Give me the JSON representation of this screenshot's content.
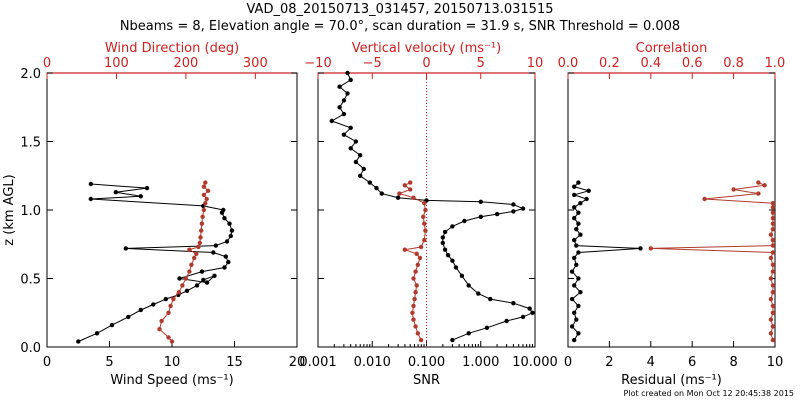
{
  "figure": {
    "title_line1": "VAD_08_20150713_031457, 20150713.031515",
    "title_line2": "Nbeams = 8, Elevation angle = 70.0°, scan duration = 31.9 s, SNR Threshold = 0.008",
    "footer": "Plot created on Mon Oct 12 20:45:38 2015",
    "colors": {
      "black_series": "#000000",
      "red_series": "#b03a2e",
      "red_axis": "#cc2222"
    }
  },
  "chart_data": [
    {
      "type": "line",
      "ylabel": "z (km AGL)",
      "ylim": [
        0,
        2.0
      ],
      "y_ticks": [
        "0.0",
        "0.5",
        "1.0",
        "1.5",
        "2.0"
      ],
      "bottom_axis": {
        "label": "Wind Speed (ms⁻¹)",
        "range": [
          0,
          20
        ],
        "ticks": [
          "0",
          "5",
          "10",
          "15",
          "20"
        ]
      },
      "top_axis": {
        "label": "Wind Direction (deg)",
        "range": [
          0,
          360
        ],
        "ticks": [
          "0",
          "100",
          "200",
          "300"
        ],
        "color": "#cc2222"
      },
      "series": [
        {
          "axis": "bottom",
          "color": "#000000",
          "points": [
            [
              2.5,
              0.04
            ],
            [
              4,
              0.1
            ],
            [
              5.2,
              0.16
            ],
            [
              6.5,
              0.22
            ],
            [
              7.5,
              0.27
            ],
            [
              8.5,
              0.31
            ],
            [
              9.5,
              0.35
            ],
            [
              10.5,
              0.38
            ],
            [
              11.2,
              0.41
            ],
            [
              12,
              0.45
            ],
            [
              12.5,
              0.49
            ],
            [
              13.4,
              0.52
            ],
            [
              12.8,
              0.47
            ],
            [
              10.6,
              0.5
            ],
            [
              12.4,
              0.55
            ],
            [
              14.2,
              0.58
            ],
            [
              14.5,
              0.62
            ],
            [
              14.3,
              0.66
            ],
            [
              13.3,
              0.69
            ],
            [
              6.3,
              0.72
            ],
            [
              13.5,
              0.74
            ],
            [
              14.4,
              0.77
            ],
            [
              14.7,
              0.81
            ],
            [
              14.8,
              0.85
            ],
            [
              14.6,
              0.9
            ],
            [
              14.2,
              0.94
            ],
            [
              14,
              0.98
            ],
            [
              14.1,
              1.0
            ],
            [
              12.5,
              1.03
            ],
            [
              3.5,
              1.08
            ],
            [
              7.5,
              1.1
            ],
            [
              5.5,
              1.13
            ],
            [
              8,
              1.16
            ],
            [
              3.5,
              1.19
            ]
          ]
        },
        {
          "axis": "top",
          "color": "#b03a2e",
          "points": [
            [
              180,
              0.04
            ],
            [
              175,
              0.07
            ],
            [
              162,
              0.13
            ],
            [
              165,
              0.19
            ],
            [
              175,
              0.25
            ],
            [
              178,
              0.3
            ],
            [
              182,
              0.35
            ],
            [
              190,
              0.4
            ],
            [
              195,
              0.45
            ],
            [
              200,
              0.5
            ],
            [
              205,
              0.55
            ],
            [
              208,
              0.6
            ],
            [
              212,
              0.65
            ],
            [
              215,
              0.68
            ],
            [
              205,
              0.71
            ],
            [
              218,
              0.73
            ],
            [
              220,
              0.76
            ],
            [
              221,
              0.8
            ],
            [
              222,
              0.85
            ],
            [
              223,
              0.9
            ],
            [
              224,
              0.95
            ],
            [
              226,
              1.0
            ],
            [
              228,
              1.05
            ],
            [
              230,
              1.08
            ],
            [
              226,
              1.11
            ],
            [
              232,
              1.14
            ],
            [
              226,
              1.17
            ],
            [
              228,
              1.2
            ]
          ]
        }
      ]
    },
    {
      "type": "line",
      "ylim": [
        0,
        2.0
      ],
      "bottom_axis": {
        "label": "SNR",
        "range": [
          0.001,
          10
        ],
        "scale": "log",
        "ticks": [
          "0.001",
          "0.010",
          "0.100",
          "1.000",
          "10.000"
        ]
      },
      "top_axis": {
        "label": "Vertical velocity (ms⁻¹)",
        "range": [
          -10,
          10
        ],
        "ticks": [
          "−10",
          "−5",
          "0",
          "5",
          "10"
        ],
        "color": "#cc2222",
        "zero_line": true
      },
      "series": [
        {
          "axis": "bottom",
          "color": "#000000",
          "points": [
            [
              0.3,
              0.05
            ],
            [
              0.6,
              0.1
            ],
            [
              1.3,
              0.14
            ],
            [
              3,
              0.19
            ],
            [
              6,
              0.22
            ],
            [
              9,
              0.25
            ],
            [
              8,
              0.28
            ],
            [
              4,
              0.32
            ],
            [
              1.5,
              0.35
            ],
            [
              0.9,
              0.39
            ],
            [
              0.6,
              0.45
            ],
            [
              0.45,
              0.52
            ],
            [
              0.35,
              0.58
            ],
            [
              0.3,
              0.63
            ],
            [
              0.25,
              0.67
            ],
            [
              0.22,
              0.71
            ],
            [
              0.2,
              0.76
            ],
            [
              0.2,
              0.8
            ],
            [
              0.22,
              0.84
            ],
            [
              0.3,
              0.88
            ],
            [
              0.5,
              0.92
            ],
            [
              1,
              0.95
            ],
            [
              2,
              0.97
            ],
            [
              4,
              0.99
            ],
            [
              6,
              1.01
            ],
            [
              4,
              1.04
            ],
            [
              1,
              1.06
            ],
            [
              0.1,
              1.07
            ],
            [
              0.03,
              1.09
            ],
            [
              0.015,
              1.12
            ],
            [
              0.012,
              1.16
            ],
            [
              0.009,
              1.2
            ],
            [
              0.006,
              1.25
            ],
            [
              0.007,
              1.3
            ],
            [
              0.005,
              1.35
            ],
            [
              0.006,
              1.4
            ],
            [
              0.004,
              1.45
            ],
            [
              0.005,
              1.5
            ],
            [
              0.003,
              1.55
            ],
            [
              0.004,
              1.6
            ],
            [
              0.0018,
              1.65
            ],
            [
              0.003,
              1.7
            ],
            [
              0.0025,
              1.75
            ],
            [
              0.003,
              1.8
            ],
            [
              0.0035,
              1.85
            ],
            [
              0.0025,
              1.9
            ],
            [
              0.004,
              1.95
            ],
            [
              0.0035,
              2.0
            ]
          ]
        },
        {
          "axis": "top",
          "color": "#b03a2e",
          "points": [
            [
              -0.5,
              0.05
            ],
            [
              -0.8,
              0.1
            ],
            [
              -1,
              0.15
            ],
            [
              -1.2,
              0.2
            ],
            [
              -1.3,
              0.25
            ],
            [
              -1.2,
              0.3
            ],
            [
              -1.1,
              0.35
            ],
            [
              -1,
              0.4
            ],
            [
              -0.9,
              0.45
            ],
            [
              -1.2,
              0.5
            ],
            [
              -1,
              0.55
            ],
            [
              -0.8,
              0.6
            ],
            [
              -0.6,
              0.65
            ],
            [
              -0.9,
              0.68
            ],
            [
              -2,
              0.71
            ],
            [
              -0.5,
              0.73
            ],
            [
              -0.2,
              0.78
            ],
            [
              -0.1,
              0.85
            ],
            [
              -0.2,
              0.9
            ],
            [
              -0.3,
              0.95
            ],
            [
              -0.1,
              1.0
            ],
            [
              -0.2,
              1.05
            ],
            [
              -1.2,
              1.09
            ],
            [
              -2.5,
              1.12
            ],
            [
              -1.5,
              1.15
            ],
            [
              -2,
              1.18
            ],
            [
              -1.5,
              1.2
            ]
          ]
        }
      ]
    },
    {
      "type": "line",
      "ylim": [
        0,
        2.0
      ],
      "bottom_axis": {
        "label": "Residual (ms⁻¹)",
        "range": [
          0,
          10
        ],
        "ticks": [
          "0",
          "2",
          "4",
          "6",
          "8",
          "10"
        ]
      },
      "top_axis": {
        "label": "Correlation",
        "range": [
          0,
          1
        ],
        "ticks": [
          "0.0",
          "0.2",
          "0.4",
          "0.6",
          "0.8",
          "1.0"
        ],
        "color": "#cc2222"
      },
      "series": [
        {
          "axis": "bottom",
          "color": "#000000",
          "points": [
            [
              0.3,
              0.05
            ],
            [
              0.5,
              0.1
            ],
            [
              0.2,
              0.15
            ],
            [
              0.4,
              0.2
            ],
            [
              0.3,
              0.25
            ],
            [
              0.5,
              0.3
            ],
            [
              0.2,
              0.35
            ],
            [
              0.6,
              0.4
            ],
            [
              0.3,
              0.45
            ],
            [
              0.5,
              0.5
            ],
            [
              0.2,
              0.55
            ],
            [
              0.4,
              0.6
            ],
            [
              0.3,
              0.65
            ],
            [
              0.5,
              0.69
            ],
            [
              3.5,
              0.72
            ],
            [
              0.4,
              0.74
            ],
            [
              0.3,
              0.78
            ],
            [
              0.6,
              0.82
            ],
            [
              0.4,
              0.86
            ],
            [
              0.5,
              0.9
            ],
            [
              0.3,
              0.94
            ],
            [
              0.5,
              0.98
            ],
            [
              0.3,
              1.02
            ],
            [
              0.6,
              1.05
            ],
            [
              0.9,
              1.08
            ],
            [
              0.3,
              1.11
            ],
            [
              1,
              1.14
            ],
            [
              0.3,
              1.17
            ],
            [
              0.5,
              1.2
            ]
          ]
        },
        {
          "axis": "top",
          "color": "#b03a2e",
          "points": [
            [
              0.99,
              0.05
            ],
            [
              0.98,
              0.1
            ],
            [
              0.99,
              0.15
            ],
            [
              0.98,
              0.2
            ],
            [
              0.99,
              0.25
            ],
            [
              0.99,
              0.3
            ],
            [
              0.98,
              0.35
            ],
            [
              0.99,
              0.4
            ],
            [
              0.99,
              0.45
            ],
            [
              0.98,
              0.5
            ],
            [
              0.99,
              0.55
            ],
            [
              0.99,
              0.6
            ],
            [
              0.98,
              0.65
            ],
            [
              0.99,
              0.69
            ],
            [
              0.4,
              0.72
            ],
            [
              0.99,
              0.74
            ],
            [
              0.99,
              0.78
            ],
            [
              0.98,
              0.82
            ],
            [
              0.99,
              0.86
            ],
            [
              0.99,
              0.9
            ],
            [
              0.99,
              0.94
            ],
            [
              0.99,
              0.98
            ],
            [
              0.99,
              1.02
            ],
            [
              0.99,
              1.05
            ],
            [
              0.66,
              1.08
            ],
            [
              0.92,
              1.12
            ],
            [
              0.8,
              1.15
            ],
            [
              0.95,
              1.18
            ],
            [
              0.92,
              1.2
            ]
          ]
        }
      ]
    }
  ]
}
